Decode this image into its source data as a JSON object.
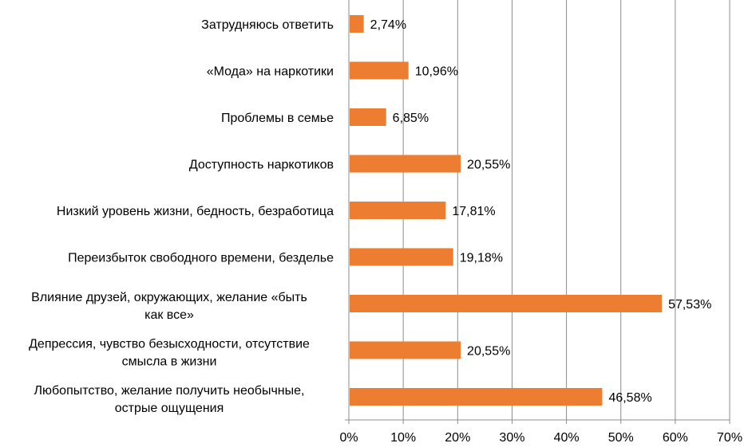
{
  "chart_data": {
    "type": "bar",
    "orientation": "horizontal",
    "categories": [
      "Затрудняюсь ответить",
      "«Мода» на наркотики",
      "Проблемы в семье",
      "Доступность наркотиков",
      "Низкий уровень жизни, бедность, безработица",
      "Переизбыток свободного времени, безделье",
      "Влияние друзей, окружающих, желание «быть как все»",
      "Депрессия, чувство безысходности, отсутствие смысла в жизни",
      "Любопытство, желание получить необычные, острые ощущения"
    ],
    "category_lines": [
      [
        "Затрудняюсь ответить"
      ],
      [
        "«Мода» на наркотики"
      ],
      [
        "Проблемы в семье"
      ],
      [
        "Доступность наркотиков"
      ],
      [
        "Низкий уровень жизни, бедность, безработица"
      ],
      [
        "Переизбыток свободного времени, безделье"
      ],
      [
        "Влияние друзей, окружающих, желание «быть",
        "как все»"
      ],
      [
        "Депрессия, чувство безысходности, отсутствие",
        "смысла в жизни"
      ],
      [
        "Любопытство, желание получить необычные,",
        "острые ощущения"
      ]
    ],
    "values": [
      2.74,
      10.96,
      6.85,
      20.55,
      17.81,
      19.18,
      57.53,
      20.55,
      46.58
    ],
    "data_labels": [
      "2,74%",
      "10,96%",
      "6,85%",
      "20,55%",
      "17,81%",
      "19,18%",
      "57,53%",
      "20,55%",
      "46,58%"
    ],
    "xlim": [
      0,
      70
    ],
    "x_ticks": [
      "0%",
      "10%",
      "20%",
      "30%",
      "40%",
      "50%",
      "60%",
      "70%"
    ],
    "grid": "vertical",
    "bar_color": "#ED7D31",
    "title": "",
    "xlabel": "",
    "ylabel": ""
  }
}
